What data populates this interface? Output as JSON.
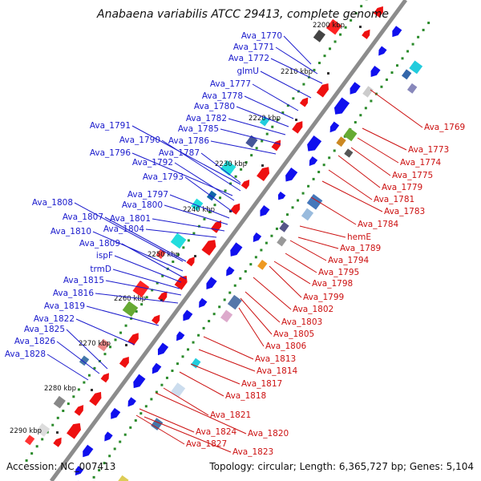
{
  "title": "Anabaena variabilis ATCC 29413, complete genome",
  "accession": "Accession: NC_007413",
  "topology": "Topology: circular; Length: 6,365,727 bp; Genes: 5,104",
  "colors": {
    "backbone": "#8c8c8c",
    "forward_label": "#1a1acc",
    "reverse_label": "#cc1111",
    "forward_gene": "#1010ee",
    "reverse_gene": "#ee1010",
    "gc_marker": "#2a8a2a"
  },
  "scale_ticks": [
    "2200 kbp",
    "2210 kbp",
    "2220 kbp",
    "2230 kbp",
    "2240 kbp",
    "2250 kbp",
    "2260 kbp",
    "2270 kbp",
    "2280 kbp",
    "2290 kbp"
  ],
  "forward_genes": [
    "Ava_1770",
    "Ava_1771",
    "Ava_1772",
    "glmU",
    "Ava_1777",
    "Ava_1778",
    "Ava_1780",
    "Ava_1782",
    "Ava_1785",
    "Ava_1786",
    "Ava_1791",
    "Ava_1790",
    "Ava_1787",
    "Ava_1796",
    "Ava_1792",
    "Ava_1793",
    "Ava_1797",
    "Ava_1800",
    "Ava_1808",
    "Ava_1801",
    "Ava_1807",
    "Ava_1804",
    "Ava_1810",
    "Ava_1809",
    "ispF",
    "trmD",
    "Ava_1815",
    "Ava_1816",
    "Ava_1819",
    "Ava_1822",
    "Ava_1825",
    "Ava_1826",
    "Ava_1828"
  ],
  "reverse_genes": [
    "Ava_1769",
    "Ava_1773",
    "Ava_1774",
    "Ava_1775",
    "Ava_1779",
    "Ava_1781",
    "Ava_1783",
    "Ava_1784",
    "hemE",
    "Ava_1789",
    "Ava_1794",
    "Ava_1795",
    "Ava_1798",
    "Ava_1799",
    "Ava_1802",
    "Ava_1803",
    "Ava_1805",
    "Ava_1806",
    "Ava_1813",
    "Ava_1814",
    "Ava_1817",
    "Ava_1818",
    "Ava_1821",
    "Ava_1820",
    "Ava_1824",
    "Ava_1827",
    "Ava_1823"
  ]
}
